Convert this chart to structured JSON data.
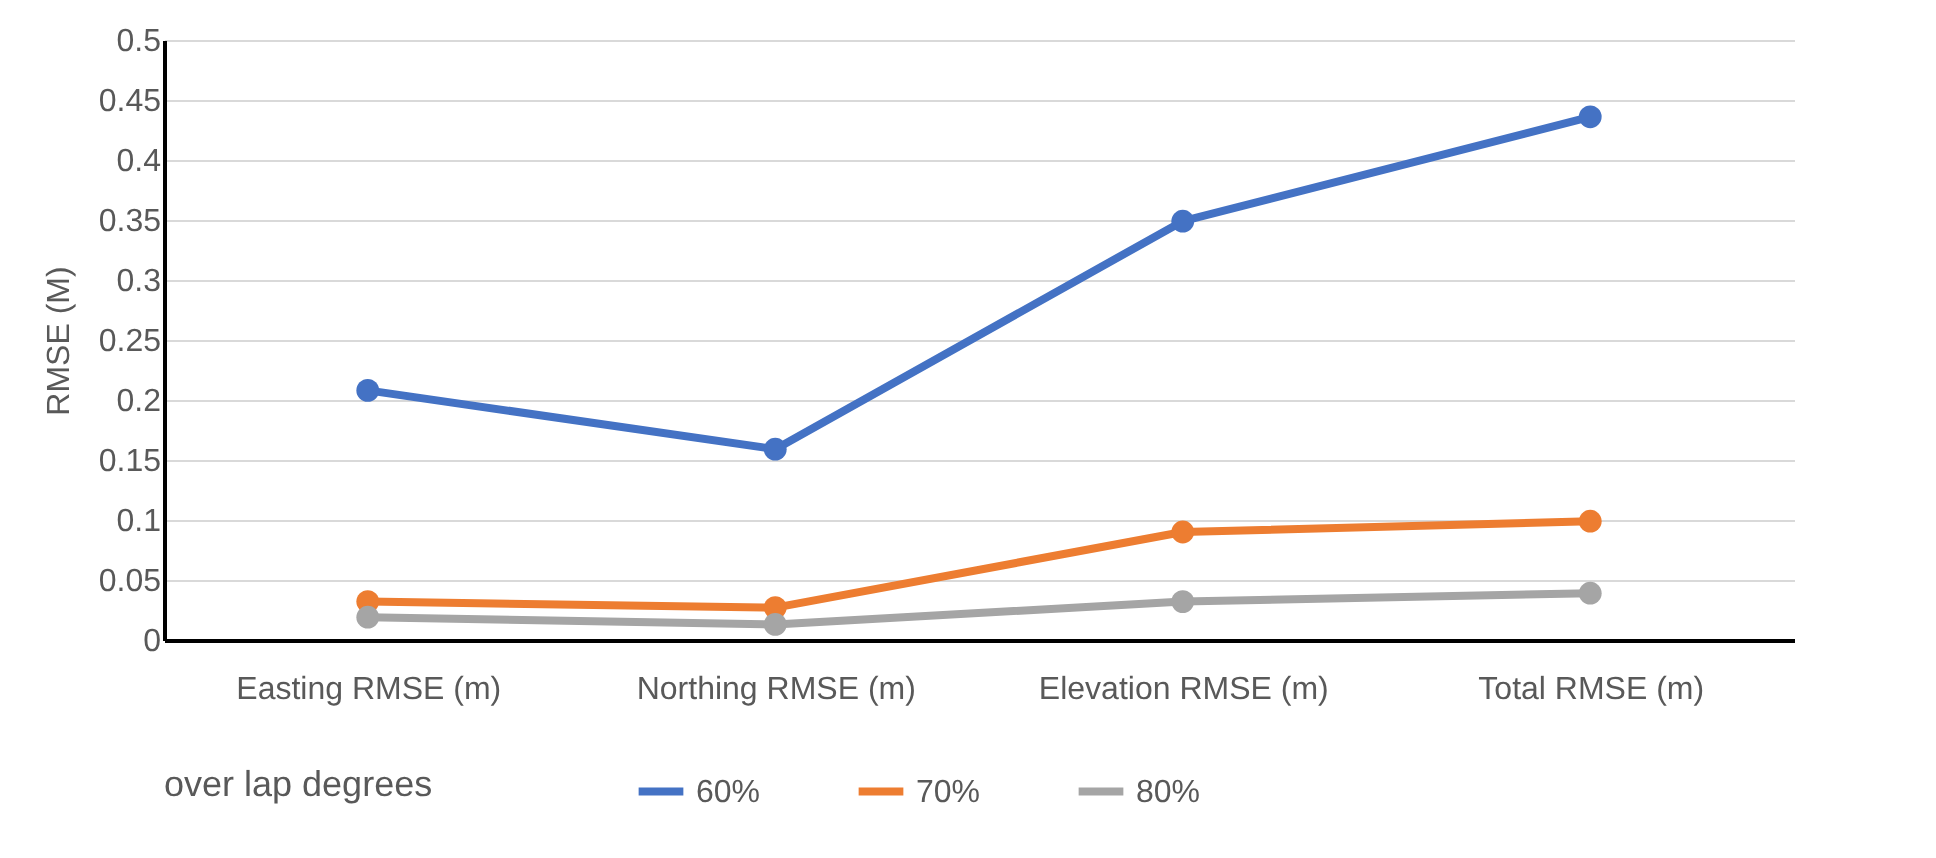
{
  "chart_data": {
    "type": "line",
    "ylabel": "RMSE (M)",
    "legend_title": "over lap degrees",
    "categories": [
      "Easting RMSE (m)",
      "Northing RMSE (m)",
      "Elevation RMSE (m)",
      "Total RMSE (m)"
    ],
    "series": [
      {
        "name": "60%",
        "color": "#4472c4",
        "values": [
          0.208,
          0.159,
          0.349,
          0.436
        ]
      },
      {
        "name": "70%",
        "color": "#ed7d31",
        "values": [
          0.032,
          0.027,
          0.09,
          0.099
        ]
      },
      {
        "name": "80%",
        "color": "#a5a5a5",
        "values": [
          0.019,
          0.013,
          0.032,
          0.039
        ]
      }
    ],
    "ylim": [
      0,
      0.5
    ],
    "yticks": [
      0,
      0.05,
      0.1,
      0.15,
      0.2,
      0.25,
      0.3,
      0.35,
      0.4,
      0.45,
      0.5
    ],
    "grid": "y",
    "legend": "bottom",
    "marker": "circle",
    "line_style": "solid"
  }
}
